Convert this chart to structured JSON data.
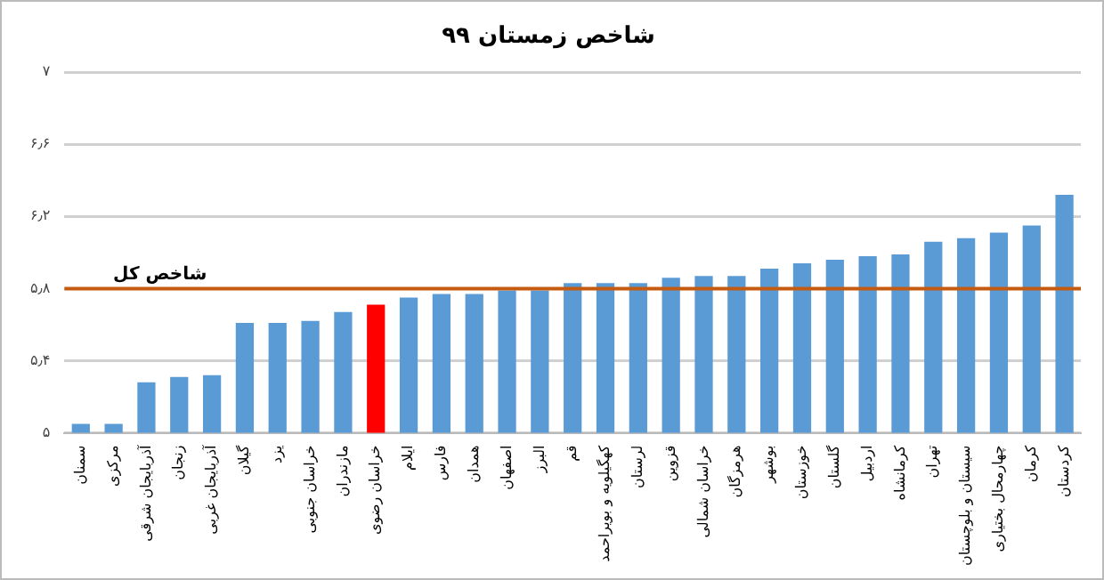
{
  "chart_data": {
    "type": "bar",
    "title": "شاخص زمستان ۹۹",
    "categories": [
      "سمنان",
      "مرکزی",
      "آذربایجان شرقی",
      "زنجان",
      "آذربایجان غربی",
      "گیلان",
      "یزد",
      "خراسان جنوبی",
      "مازندران",
      "خراسان رضوی",
      "ایلام",
      "فارس",
      "همدان",
      "اصفهان",
      "البرز",
      "قم",
      "کهگیلویه و بویراحمد",
      "لرستان",
      "قزوین",
      "خراسان شمالی",
      "هرمزگان",
      "بوشهر",
      "خوزستان",
      "گلستان",
      "اردبیل",
      "کرمانشاه",
      "تهران",
      "سیستان و بلوچستان",
      "چهارمحال بختیاری",
      "کرمان",
      "کردستان"
    ],
    "values": [
      5.05,
      5.05,
      5.28,
      5.31,
      5.32,
      5.61,
      5.61,
      5.62,
      5.67,
      5.71,
      5.75,
      5.77,
      5.77,
      5.79,
      5.79,
      5.83,
      5.83,
      5.83,
      5.86,
      5.87,
      5.87,
      5.91,
      5.94,
      5.96,
      5.98,
      5.99,
      6.06,
      6.08,
      6.11,
      6.15,
      6.32
    ],
    "colors": [
      "#5b9bd5",
      "#5b9bd5",
      "#5b9bd5",
      "#5b9bd5",
      "#5b9bd5",
      "#5b9bd5",
      "#5b9bd5",
      "#5b9bd5",
      "#5b9bd5",
      "#ff0000",
      "#5b9bd5",
      "#5b9bd5",
      "#5b9bd5",
      "#5b9bd5",
      "#5b9bd5",
      "#5b9bd5",
      "#5b9bd5",
      "#5b9bd5",
      "#5b9bd5",
      "#5b9bd5",
      "#5b9bd5",
      "#5b9bd5",
      "#5b9bd5",
      "#5b9bd5",
      "#5b9bd5",
      "#5b9bd5",
      "#5b9bd5",
      "#5b9bd5",
      "#5b9bd5",
      "#5b9bd5",
      "#5b9bd5"
    ],
    "ylim": [
      5,
      7
    ],
    "yticks": [
      {
        "value": 5,
        "label": "۵"
      },
      {
        "value": 5.4,
        "label": "۵٫۴"
      },
      {
        "value": 5.8,
        "label": "۵٫۸"
      },
      {
        "value": 6.2,
        "label": "۶٫۲"
      },
      {
        "value": 6.6,
        "label": "۶٫۶"
      },
      {
        "value": 7,
        "label": "۷"
      }
    ],
    "ref_lines": [
      {
        "axis": "y",
        "value": 5.8,
        "label": "شاخص کل",
        "color": "#c55a11"
      }
    ],
    "grid": "y",
    "legend": false
  }
}
